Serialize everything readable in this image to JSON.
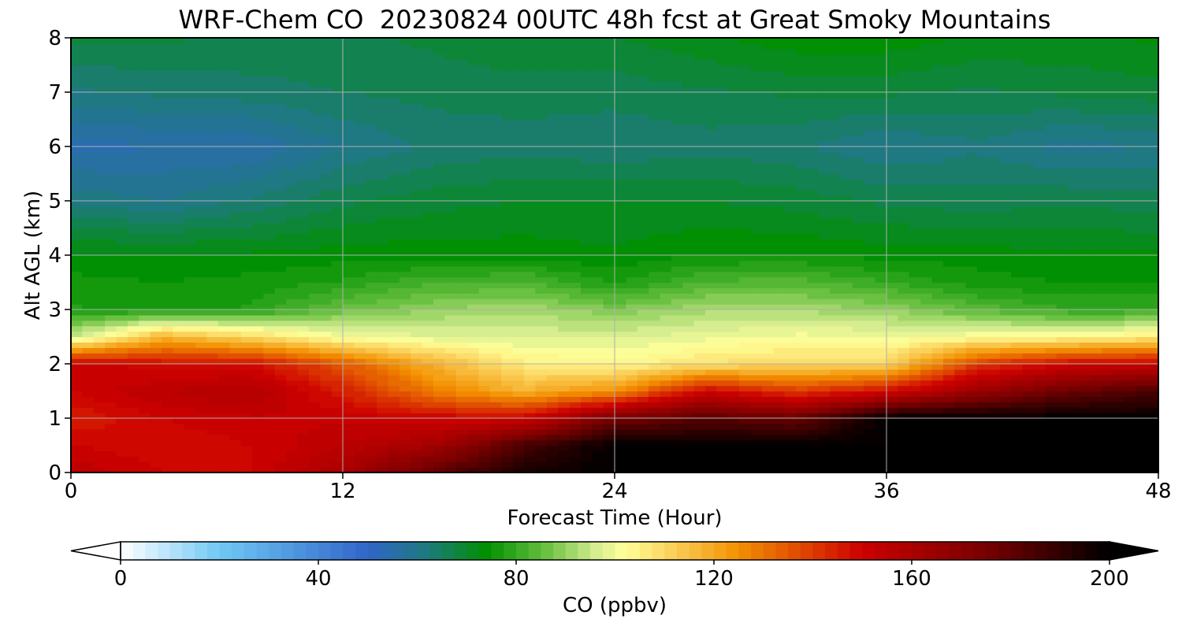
{
  "chart_data": {
    "type": "heatmap",
    "title": "WRF-Chem CO  20230824 00UTC 48h fcst at Great Smoky Mountains",
    "xlabel": "Forecast Time (Hour)",
    "ylabel": "Alt AGL (km)",
    "xlim": [
      0,
      48
    ],
    "ylim": [
      0,
      8
    ],
    "x_ticks": [
      "0",
      "12",
      "24",
      "36",
      "48"
    ],
    "y_ticks": [
      "0",
      "1",
      "2",
      "3",
      "4",
      "5",
      "6",
      "7",
      "8"
    ],
    "grid": true,
    "colorbar": {
      "label": "CO  (ppbv)",
      "min": 0,
      "max": 200,
      "ticks": [
        "0",
        "40",
        "80",
        "120",
        "160",
        "200"
      ],
      "extend": "both",
      "colors": [
        {
          "value": 0,
          "color": "#ffffff"
        },
        {
          "value": 20,
          "color": "#70c8f5"
        },
        {
          "value": 50,
          "color": "#3065c8"
        },
        {
          "value": 62,
          "color": "#1e7a7e"
        },
        {
          "value": 74,
          "color": "#009000"
        },
        {
          "value": 86,
          "color": "#68c040"
        },
        {
          "value": 96,
          "color": "#d4ec90"
        },
        {
          "value": 102,
          "color": "#ffff99"
        },
        {
          "value": 125,
          "color": "#f39000"
        },
        {
          "value": 150,
          "color": "#cc0000"
        },
        {
          "value": 175,
          "color": "#780000"
        },
        {
          "value": 200,
          "color": "#000000"
        }
      ]
    },
    "x": [
      0,
      4,
      8,
      12,
      16,
      20,
      24,
      28,
      32,
      36,
      40,
      44,
      48
    ],
    "y": [
      0,
      0.5,
      1,
      1.5,
      2,
      2.5,
      3,
      3.5,
      4,
      5,
      6,
      7,
      8
    ],
    "z": [
      [
        155,
        150,
        150,
        160,
        180,
        195,
        200,
        200,
        200,
        200,
        200,
        200,
        200
      ],
      [
        150,
        148,
        150,
        155,
        162,
        185,
        200,
        200,
        200,
        200,
        200,
        200,
        200
      ],
      [
        145,
        150,
        152,
        152,
        150,
        150,
        175,
        182,
        178,
        200,
        200,
        200,
        200
      ],
      [
        150,
        155,
        158,
        145,
        128,
        118,
        125,
        150,
        140,
        148,
        165,
        178,
        185
      ],
      [
        152,
        148,
        148,
        135,
        118,
        106,
        103,
        108,
        110,
        110,
        140,
        150,
        152
      ],
      [
        95,
        118,
        110,
        100,
        98,
        97,
        97,
        99,
        101,
        100,
        102,
        103,
        106
      ],
      [
        78,
        76,
        78,
        86,
        90,
        92,
        88,
        92,
        92,
        90,
        84,
        80,
        80
      ],
      [
        76,
        75,
        76,
        78,
        82,
        83,
        77,
        83,
        84,
        80,
        76,
        75,
        75
      ],
      [
        73,
        73,
        73,
        74,
        74,
        74,
        73,
        75,
        75,
        74,
        74,
        73,
        73
      ],
      [
        62,
        60,
        63,
        67,
        69,
        70,
        70,
        70,
        69,
        67,
        66,
        67,
        66
      ],
      [
        54,
        55,
        55,
        60,
        63,
        64,
        63,
        64,
        63,
        60,
        62,
        59,
        60
      ],
      [
        62,
        63,
        64,
        65,
        66,
        66,
        66,
        67,
        68,
        68,
        67,
        68,
        69
      ],
      [
        68,
        68,
        67,
        67,
        68,
        70,
        70,
        72,
        74,
        74,
        72,
        72,
        73
      ]
    ]
  }
}
